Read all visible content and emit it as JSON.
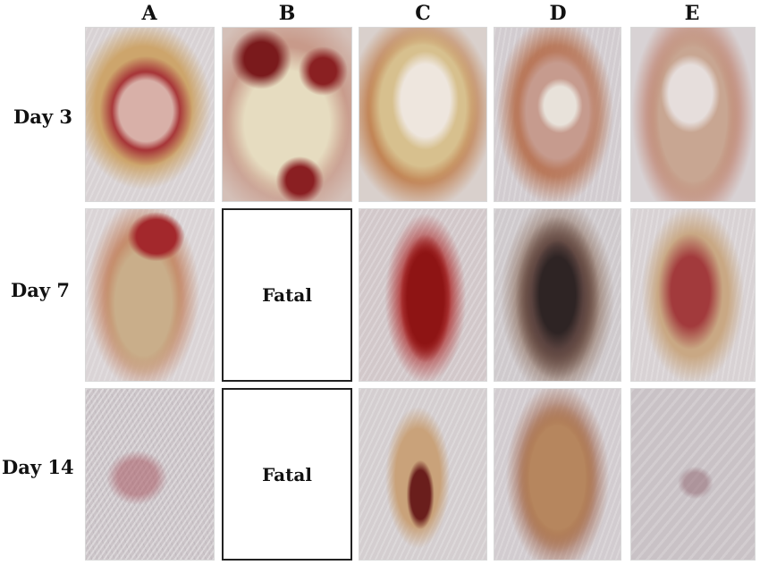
{
  "columns": [
    "A",
    "B",
    "C",
    "D",
    "E"
  ],
  "rows": [
    "Day 3",
    "Day 7",
    "Day 14"
  ],
  "cells": {
    "b_day7": "Fatal",
    "b_day14": "Fatal"
  }
}
